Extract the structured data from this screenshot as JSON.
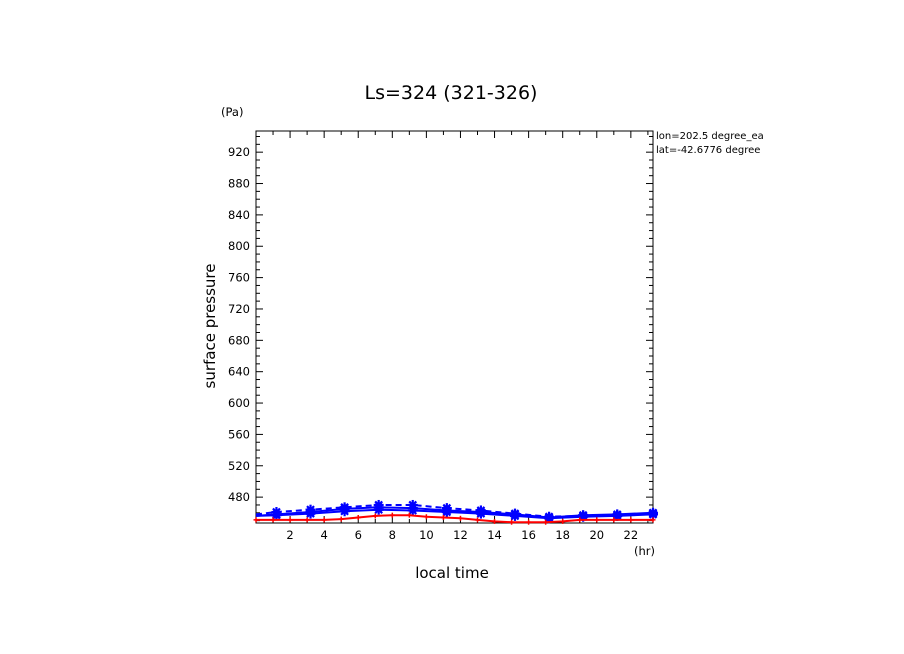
{
  "chart_data": {
    "type": "line",
    "title": "Ls=324 (321-326)",
    "xlabel": "local time",
    "ylabel": "surface pressure",
    "x_unit": "(hr)",
    "y_unit": "(Pa)",
    "annotation": {
      "lon": "lon=202.5 degree_ea",
      "lat": "lat=-42.6776 degree"
    },
    "xlim": [
      0,
      23.3
    ],
    "ylim": [
      447,
      947
    ],
    "x_ticks": [
      2,
      4,
      6,
      8,
      10,
      12,
      14,
      16,
      18,
      20,
      22
    ],
    "y_ticks": [
      480,
      520,
      560,
      600,
      640,
      680,
      720,
      760,
      800,
      840,
      880,
      920
    ],
    "grid": false,
    "legend": "none",
    "colors": {
      "blue": "#0000ff",
      "red": "#ff0000",
      "axis": "#000000"
    },
    "series": [
      {
        "color": "#0000ff",
        "style": "dashed",
        "marker": "star",
        "x": [
          0,
          1.2,
          3.2,
          5.2,
          7.2,
          9.2,
          11.2,
          13.2,
          15.2,
          17.2,
          19.2,
          21.2,
          23.3
        ],
        "y": [
          458,
          461,
          464,
          467,
          470,
          470,
          466,
          463,
          459,
          455,
          456,
          457,
          459
        ]
      },
      {
        "color": "#0000ff",
        "style": "solid",
        "marker": "star",
        "x": [
          0,
          1.2,
          3.2,
          5.2,
          7.2,
          9.2,
          11.2,
          13.2,
          15.2,
          17.2,
          19.2,
          21.2,
          23.3
        ],
        "y": [
          456,
          458,
          461,
          465,
          467,
          466,
          463,
          461,
          458,
          454,
          457,
          458,
          460
        ]
      },
      {
        "color": "#0000ff",
        "style": "solid",
        "marker": "star",
        "x": [
          0,
          1.2,
          3.2,
          5.2,
          7.2,
          9.2,
          11.2,
          13.2,
          15.2,
          17.2,
          19.2,
          21.2,
          23.3
        ],
        "y": [
          456,
          457,
          459,
          462,
          464,
          463,
          461,
          459,
          456,
          453,
          455,
          456,
          458
        ]
      },
      {
        "color": "#ff0000",
        "style": "solid",
        "marker": "plus",
        "x": [
          0,
          1,
          2,
          3,
          4,
          5,
          6,
          7,
          8,
          9,
          10,
          11,
          12,
          13,
          14,
          15,
          16,
          17,
          18,
          19,
          20,
          21,
          22,
          23.3
        ],
        "y": [
          451,
          451,
          451,
          451,
          451,
          452,
          454,
          456,
          457,
          457,
          455,
          454,
          453,
          451,
          449,
          448,
          448,
          448,
          449,
          451,
          451,
          451,
          451,
          451
        ]
      }
    ]
  }
}
